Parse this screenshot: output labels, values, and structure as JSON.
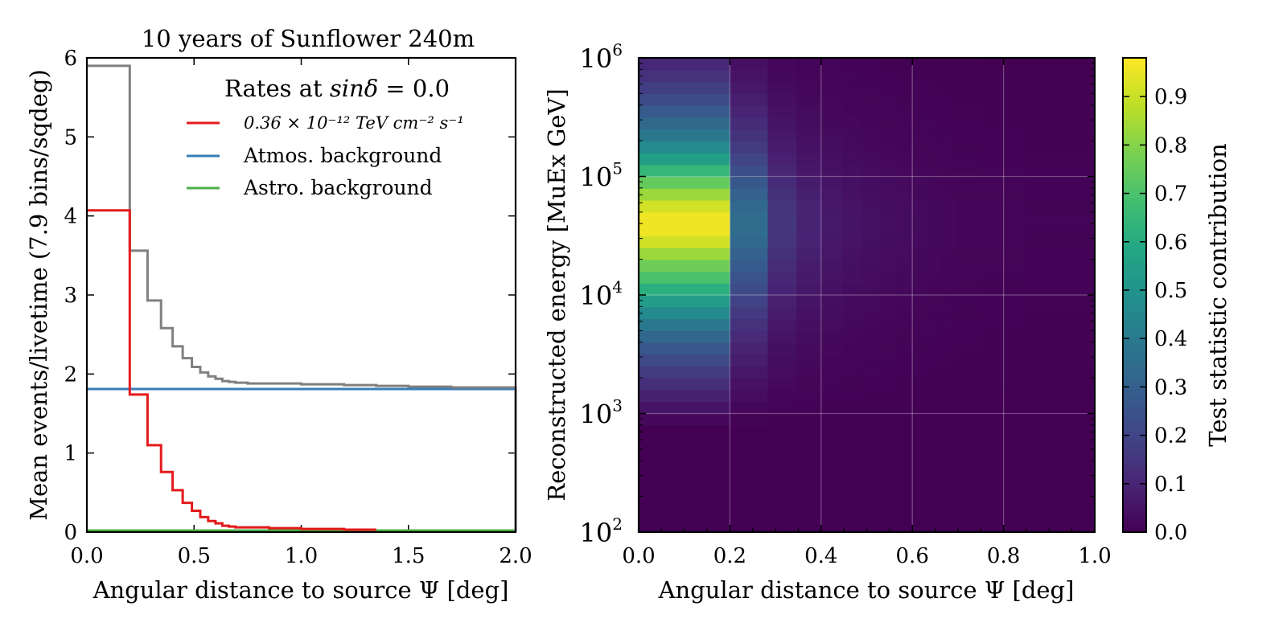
{
  "chart_data": [
    {
      "type": "line",
      "title": "10 years of Sunflower 240m",
      "xlabel": "Angular distance to source Ψ [deg]",
      "ylabel": "Mean events/livetime (7.9 bins/sqdeg)",
      "xlim": [
        0.0,
        2.0
      ],
      "ylim": [
        0,
        6
      ],
      "xticks": [
        "0.0",
        "0.5",
        "1.0",
        "1.5",
        "2.0"
      ],
      "yticks": [
        "0",
        "1",
        "2",
        "3",
        "4",
        "5",
        "6"
      ],
      "grid": false,
      "legend": {
        "title": "Rates at sinδ = 0.0",
        "placement": "top-right",
        "entries": [
          {
            "label": "0.36 × 10⁻¹² TeV cm⁻² s⁻¹",
            "color": "#e41a1c"
          },
          {
            "label": "Atmos. background",
            "color": "#377eb8"
          },
          {
            "label": "Astro. background",
            "color": "#4daf4a"
          }
        ]
      },
      "bin_edges": [
        0.0,
        0.2,
        0.283,
        0.346,
        0.4,
        0.447,
        0.49,
        0.529,
        0.566,
        0.6,
        0.632,
        0.663,
        0.693,
        0.75,
        0.85,
        1.0,
        1.2,
        1.35,
        1.5,
        1.7,
        2.0
      ],
      "series": [
        {
          "name": "0.36 × 10⁻¹² TeV cm⁻² s⁻¹",
          "color": "#e41a1c",
          "end": 1.35,
          "values": [
            4.07,
            1.74,
            1.1,
            0.76,
            0.53,
            0.37,
            0.27,
            0.19,
            0.14,
            0.11,
            0.08,
            0.07,
            0.06,
            0.06,
            0.05,
            0.04,
            0.03
          ]
        },
        {
          "name": "Atmos. background",
          "color": "#377eb8",
          "constant": 1.81
        },
        {
          "name": "Astro. background",
          "color": "#4daf4a",
          "constant": 0.02
        },
        {
          "name": "",
          "color": "#808080",
          "values": [
            5.9,
            3.56,
            2.93,
            2.58,
            2.35,
            2.2,
            2.09,
            2.02,
            1.97,
            1.94,
            1.91,
            1.9,
            1.89,
            1.88,
            1.88,
            1.87,
            1.86,
            1.85,
            1.84,
            1.83
          ]
        }
      ]
    },
    {
      "type": "heatmap",
      "xlabel": "Angular distance to source Ψ [deg]",
      "ylabel": "Reconstructed energy [MuEx GeV]",
      "xlim": [
        0.0,
        1.0
      ],
      "ylim": [
        100,
        1000000
      ],
      "log_y": true,
      "xticks": [
        "0.0",
        "0.2",
        "0.4",
        "0.6",
        "0.8",
        "1.0"
      ],
      "yticks": [
        {
          "base": "10",
          "exp": "2"
        },
        {
          "base": "10",
          "exp": "3"
        },
        {
          "base": "10",
          "exp": "4"
        },
        {
          "base": "10",
          "exp": "5"
        },
        {
          "base": "10",
          "exp": "6"
        }
      ],
      "grid": true,
      "colormap": "viridis",
      "colorbar": {
        "label": "Test statistic contribution",
        "min": 0.0,
        "max": 0.98,
        "ticks": [
          "0.0",
          "0.1",
          "0.2",
          "0.3",
          "0.4",
          "0.5",
          "0.6",
          "0.7",
          "0.8",
          "0.9"
        ]
      },
      "x_bin_edges": [
        0.0,
        0.2,
        0.283,
        0.346,
        0.4,
        0.447,
        0.49,
        0.529,
        0.566,
        0.6,
        0.632,
        0.663,
        0.693,
        0.75,
        0.85,
        1.0
      ],
      "log10_energy_bin_edges": [
        2.0,
        2.1,
        2.2,
        2.3,
        2.4,
        2.5,
        2.6,
        2.7,
        2.8,
        2.9,
        3.0,
        3.1,
        3.2,
        3.3,
        3.4,
        3.5,
        3.6,
        3.7,
        3.8,
        3.9,
        4.0,
        4.1,
        4.2,
        4.3,
        4.4,
        4.5,
        4.6,
        4.7,
        4.8,
        4.9,
        5.0,
        5.1,
        5.2,
        5.3,
        5.4,
        5.5,
        5.6,
        5.7,
        5.8,
        5.9,
        6.0
      ],
      "energy_profile": [
        0,
        0,
        0,
        0,
        0,
        0,
        0,
        0,
        0,
        0.02,
        0.05,
        0.09,
        0.13,
        0.17,
        0.22,
        0.27,
        0.33,
        0.4,
        0.47,
        0.55,
        0.63,
        0.71,
        0.78,
        0.85,
        0.93,
        0.98,
        0.98,
        0.93,
        0.85,
        0.76,
        0.66,
        0.56,
        0.47,
        0.4,
        0.34,
        0.28,
        0.23,
        0.18,
        0.14,
        0.11
      ],
      "angular_profile": [
        1.0,
        0.36,
        0.16,
        0.1,
        0.07,
        0.055,
        0.045,
        0.038,
        0.032,
        0.028,
        0.024,
        0.02,
        0.016,
        0.012,
        0.008
      ]
    }
  ]
}
